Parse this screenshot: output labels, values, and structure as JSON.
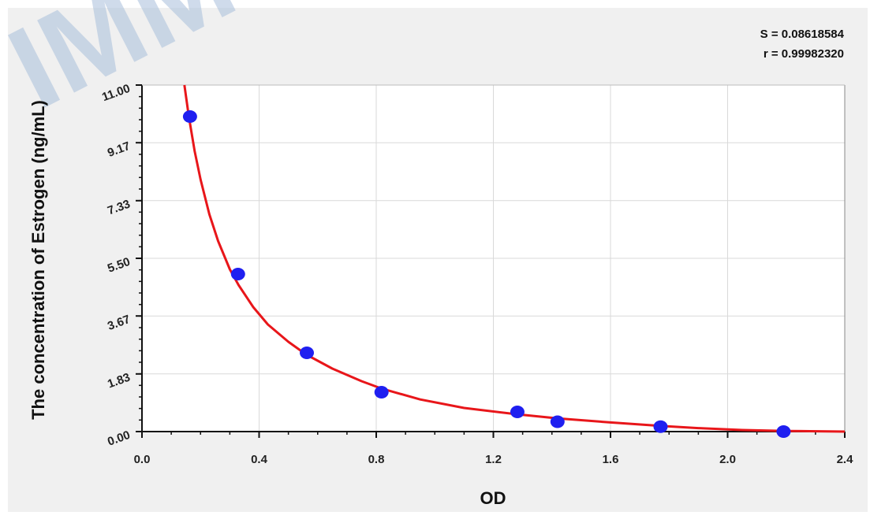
{
  "watermark_text": "IMMUS",
  "chart_data": {
    "type": "scatter",
    "title": "",
    "xlabel": "OD",
    "ylabel": "The concentration of  Estrogen (ng/mL)",
    "xlim": [
      0.0,
      2.4
    ],
    "ylim": [
      0.0,
      11.0
    ],
    "x_ticks": [
      "0.0",
      "0.4",
      "0.8",
      "1.2",
      "1.6",
      "2.0",
      "2.4"
    ],
    "y_ticks": [
      "0.00",
      "1.83",
      "3.67",
      "5.50",
      "7.33",
      "9.17",
      "11.00"
    ],
    "grid": true,
    "stats": {
      "S": "S = 0.08618584",
      "r": "r = 0.99982320"
    },
    "points": [
      {
        "x": 0.164,
        "y": 10.0
      },
      {
        "x": 0.328,
        "y": 5.0
      },
      {
        "x": 0.563,
        "y": 2.5
      },
      {
        "x": 0.818,
        "y": 1.25
      },
      {
        "x": 1.282,
        "y": 0.625
      },
      {
        "x": 1.419,
        "y": 0.313
      },
      {
        "x": 1.771,
        "y": 0.156
      },
      {
        "x": 2.191,
        "y": 0.0
      }
    ],
    "fit_curve": {
      "x": [
        0.145,
        0.16,
        0.18,
        0.2,
        0.23,
        0.26,
        0.3,
        0.33,
        0.38,
        0.43,
        0.5,
        0.56,
        0.65,
        0.75,
        0.82,
        0.95,
        1.1,
        1.28,
        1.42,
        1.6,
        1.77,
        1.9,
        2.05,
        2.2,
        2.4
      ],
      "y": [
        11.0,
        10.0,
        8.9,
        8.0,
        6.9,
        6.05,
        5.15,
        4.65,
        3.95,
        3.4,
        2.85,
        2.45,
        2.0,
        1.6,
        1.36,
        1.02,
        0.75,
        0.55,
        0.42,
        0.29,
        0.18,
        0.11,
        0.05,
        0.02,
        0.0
      ],
      "color": "#e8161a"
    },
    "point_color": "#1f1ff0",
    "background_color": "#f0f0f0"
  }
}
